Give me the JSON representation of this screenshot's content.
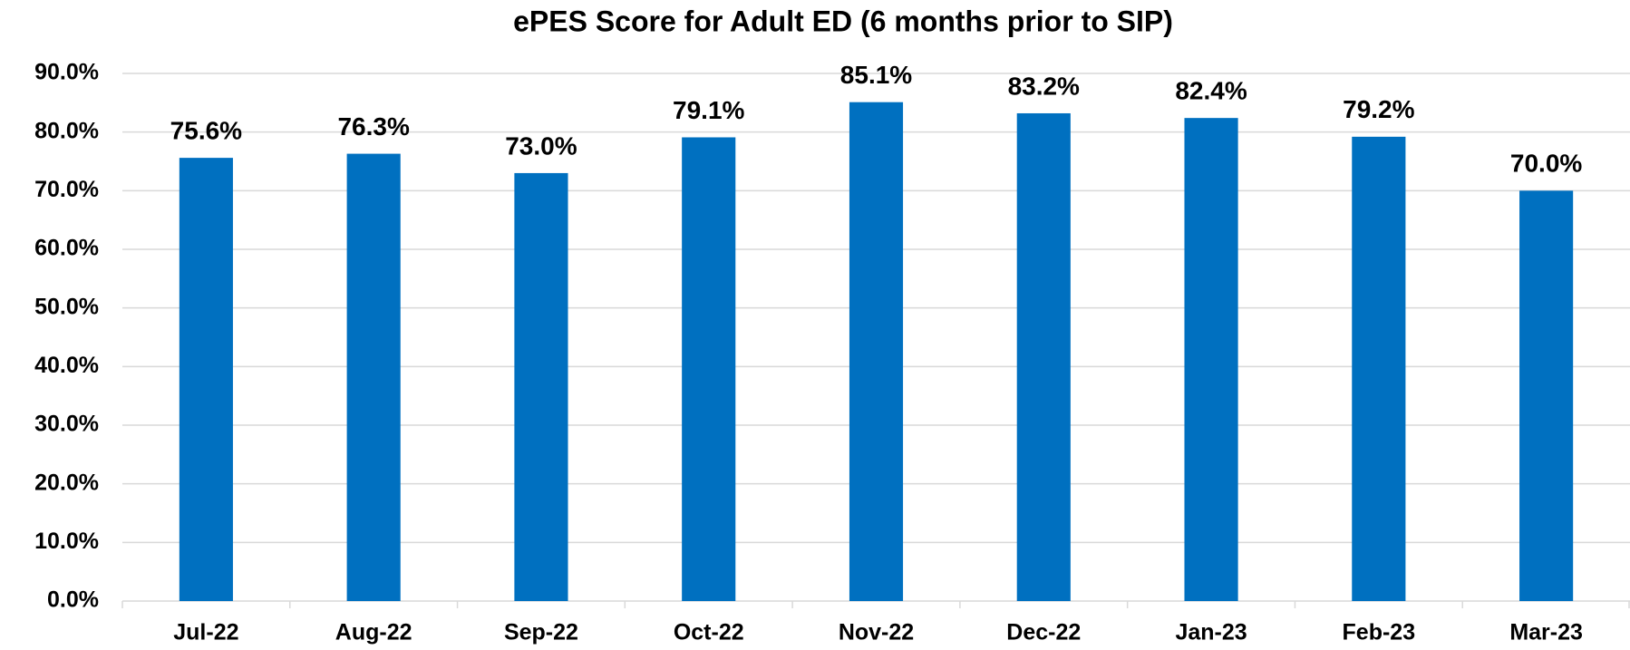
{
  "chart_data": {
    "type": "bar",
    "title": "ePES Score for Adult ED (6 months prior to SIP)",
    "categories": [
      "Jul-22",
      "Aug-22",
      "Sep-22",
      "Oct-22",
      "Nov-22",
      "Dec-22",
      "Jan-23",
      "Feb-23",
      "Mar-23"
    ],
    "values": [
      75.6,
      76.3,
      73.0,
      79.1,
      85.1,
      83.2,
      82.4,
      79.2,
      70.0
    ],
    "value_labels": [
      "75.6%",
      "76.3%",
      "73.0%",
      "79.1%",
      "85.1%",
      "83.2%",
      "82.4%",
      "79.2%",
      "70.0%"
    ],
    "color": "#0070c0",
    "ylim": [
      0,
      90
    ],
    "yticks": [
      {
        "value": 0,
        "label": "0.0%"
      },
      {
        "value": 10,
        "label": "10.0%"
      },
      {
        "value": 20,
        "label": "20.0%"
      },
      {
        "value": 30,
        "label": "30.0%"
      },
      {
        "value": 40,
        "label": "40.0%"
      },
      {
        "value": 50,
        "label": "50.0%"
      },
      {
        "value": 60,
        "label": "60.0%"
      },
      {
        "value": 70,
        "label": "70.0%"
      },
      {
        "value": 80,
        "label": "80.0%"
      },
      {
        "value": 90,
        "label": "90.0%"
      }
    ],
    "grid": true
  }
}
